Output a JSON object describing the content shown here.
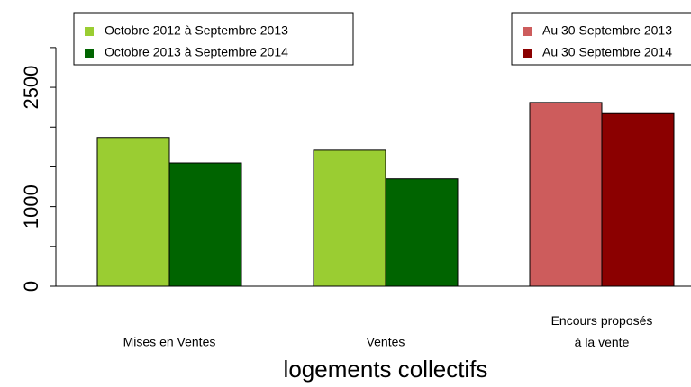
{
  "chart_data": {
    "type": "bar",
    "xlabel": "logements collectifs",
    "categories": [
      "Mises en Ventes",
      "Ventes",
      "Encours proposés\nà la vente"
    ],
    "series": [
      {
        "name": "Octobre 2012 à Septembre 2013",
        "color": "#9acd32",
        "legend": "topleft",
        "values": [
          1870,
          1710,
          null
        ]
      },
      {
        "name": "Octobre 2013 à Septembre 2014",
        "color": "#006400",
        "legend": "topleft",
        "values": [
          1550,
          1350,
          null
        ]
      },
      {
        "name": "Au 30 Septembre 2013",
        "color": "#cd5c5c",
        "legend": "topright",
        "values": [
          null,
          null,
          2310
        ]
      },
      {
        "name": "Au 30 Septembre 2014",
        "color": "#8b0000",
        "legend": "topright",
        "values": [
          null,
          null,
          2170
        ]
      }
    ],
    "ylim": [
      0,
      3440
    ],
    "yticks": [
      0,
      1000,
      2500
    ],
    "yminorticks": [
      500,
      1500,
      2000,
      3000
    ]
  }
}
